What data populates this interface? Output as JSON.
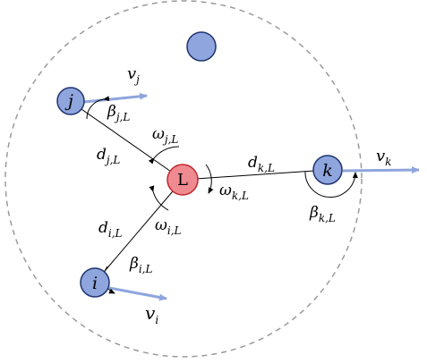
{
  "nodes": {
    "leader": {
      "label": "L",
      "fill": "#ee8a90",
      "stroke": "#c1272d"
    },
    "j": {
      "label": "j",
      "fill": "#8ea5dd",
      "stroke": "#1f3470"
    },
    "k": {
      "label": "k",
      "fill": "#8ea5dd",
      "stroke": "#1f3470"
    },
    "i": {
      "label": "i",
      "fill": "#8ea5dd",
      "stroke": "#1f3470"
    },
    "unlabeled": {
      "fill": "#8ea5dd",
      "stroke": "#1f3470"
    }
  },
  "labels": {
    "d_j": {
      "base": "d",
      "sub": "j,L"
    },
    "d_k": {
      "base": "d",
      "sub": "k,L"
    },
    "d_i": {
      "base": "d",
      "sub": "i,L"
    },
    "omega_j": {
      "base": "ω",
      "sub": "j,L"
    },
    "omega_k": {
      "base": "ω",
      "sub": "k,L"
    },
    "omega_i": {
      "base": "ω",
      "sub": "i,L"
    },
    "beta_j": {
      "base": "β",
      "sub": "j,L"
    },
    "beta_k": {
      "base": "β",
      "sub": "k,L"
    },
    "beta_i": {
      "base": "β",
      "sub": "i,L"
    },
    "v_j": {
      "base": "v",
      "sub": "j"
    },
    "v_k": {
      "base": "v",
      "sub": "k"
    },
    "v_i": {
      "base": "v",
      "sub": "i"
    }
  },
  "colors": {
    "velocity_arrow": "#8ea5dd",
    "boundary": "#9a9a9a",
    "link": "#000000"
  }
}
